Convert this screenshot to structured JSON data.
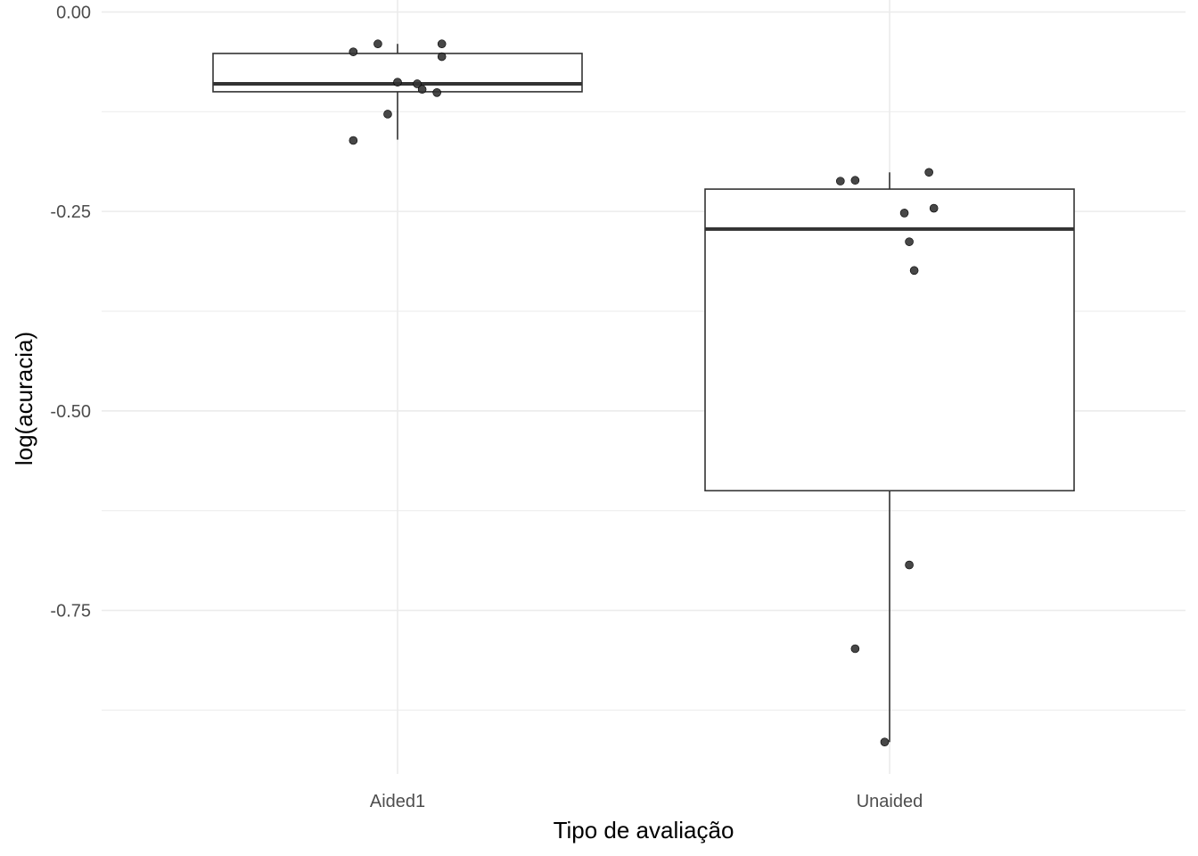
{
  "chart_data": {
    "type": "boxplot",
    "title": "",
    "xlabel": "Tipo de avaliação",
    "ylabel": "log(acuracia)",
    "ylim": [
      -0.955,
      0.015
    ],
    "grid": true,
    "y_ticks": [
      0.0,
      -0.25,
      -0.5,
      -0.75
    ],
    "y_tick_labels": [
      "0.00",
      "-0.25",
      "-0.50",
      "-0.75"
    ],
    "categories": [
      "Aided1",
      "Unaided"
    ],
    "boxes": [
      {
        "category": "Aided1",
        "q1": -0.1,
        "median": -0.09,
        "q3": -0.052,
        "whisker_low": -0.16,
        "whisker_high": -0.04,
        "points": [
          {
            "jitter": -0.09,
            "y": -0.05
          },
          {
            "jitter": -0.04,
            "y": -0.04
          },
          {
            "jitter": 0.09,
            "y": -0.04
          },
          {
            "jitter": 0.09,
            "y": -0.056
          },
          {
            "jitter": 0.0,
            "y": -0.088
          },
          {
            "jitter": 0.04,
            "y": -0.09
          },
          {
            "jitter": 0.05,
            "y": -0.097
          },
          {
            "jitter": 0.08,
            "y": -0.101
          },
          {
            "jitter": -0.02,
            "y": -0.128
          },
          {
            "jitter": -0.09,
            "y": -0.161
          }
        ]
      },
      {
        "category": "Unaided",
        "q1": -0.6,
        "median": -0.272,
        "q3": -0.222,
        "whisker_low": -0.915,
        "whisker_high": -0.201,
        "points": [
          {
            "jitter": -0.1,
            "y": -0.212
          },
          {
            "jitter": -0.07,
            "y": -0.211
          },
          {
            "jitter": 0.08,
            "y": -0.201
          },
          {
            "jitter": 0.09,
            "y": -0.246
          },
          {
            "jitter": 0.03,
            "y": -0.252
          },
          {
            "jitter": 0.04,
            "y": -0.288
          },
          {
            "jitter": 0.05,
            "y": -0.324
          },
          {
            "jitter": 0.04,
            "y": -0.693
          },
          {
            "jitter": -0.07,
            "y": -0.798
          },
          {
            "jitter": -0.01,
            "y": -0.915
          }
        ]
      }
    ]
  }
}
